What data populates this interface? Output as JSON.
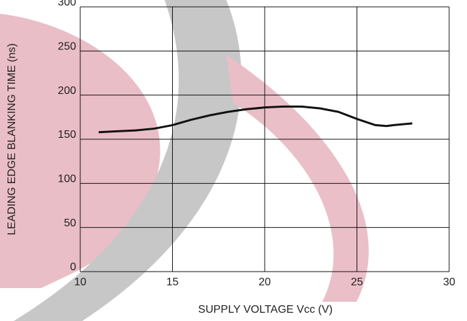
{
  "chart_data": {
    "type": "line",
    "xlabel": "SUPPLY VOLTAGE Vcc (V)",
    "ylabel": "LEADING EDGE BLANKING TIME (ns)",
    "x": [
      11,
      12,
      13,
      14,
      15,
      16,
      17,
      18,
      19,
      20,
      21,
      22,
      23,
      24,
      25,
      26,
      26.6,
      27,
      28
    ],
    "series": [
      {
        "color": "#111111",
        "values": [
          158,
          159,
          160,
          162,
          166,
          172,
          177,
          181,
          184,
          186,
          187,
          187,
          185,
          181,
          173,
          166,
          165,
          166,
          168
        ]
      }
    ],
    "xlim": [
      10,
      30
    ],
    "xticks": [
      10,
      15,
      20,
      25,
      30
    ],
    "ylim": [
      0,
      300
    ],
    "yticks": [
      0,
      50,
      100,
      150,
      200,
      250,
      300
    ],
    "grid": true
  }
}
